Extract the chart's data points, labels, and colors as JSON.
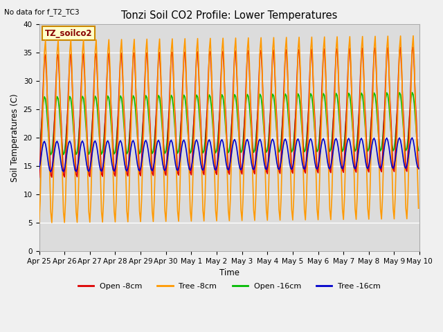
{
  "title": "Tonzi Soil CO2 Profile: Lower Temperatures",
  "subtitle": "No data for f_T2_TC3",
  "ylabel": "Soil Temperatures (C)",
  "xlabel": "Time",
  "ylim": [
    0,
    40
  ],
  "yticks": [
    0,
    5,
    10,
    15,
    20,
    25,
    30,
    35,
    40
  ],
  "bg_color": "#dcdcdc",
  "fig_color": "#f0f0f0",
  "grid_color": "#ffffff",
  "annotation_text": "TZ_soilco2",
  "annotation_bg": "#ffffcc",
  "annotation_border": "#cc8800",
  "annotation_text_color": "#880000",
  "x_labels": [
    "Apr 25",
    "Apr 26",
    "Apr 27",
    "Apr 28",
    "Apr 29",
    "Apr 30",
    "May 1",
    "May 2",
    "May 3",
    "May 4",
    "May 5",
    "May 6",
    "May 7",
    "May 8",
    "May 9",
    "May 10"
  ],
  "series": {
    "open_8cm": {
      "label": "Open -8cm",
      "color": "#dd0000",
      "linewidth": 1.2
    },
    "tree_8cm": {
      "label": "Tree -8cm",
      "color": "#ff9900",
      "linewidth": 1.2
    },
    "open_16cm": {
      "label": "Open -16cm",
      "color": "#00bb00",
      "linewidth": 1.2
    },
    "tree_16cm": {
      "label": "Tree -16cm",
      "color": "#0000cc",
      "linewidth": 1.2
    }
  }
}
